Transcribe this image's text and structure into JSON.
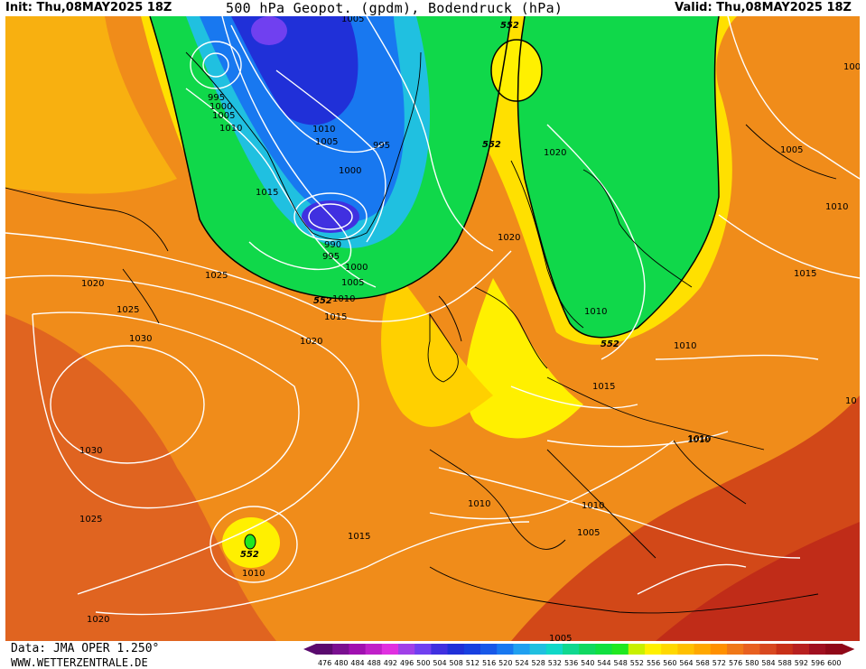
{
  "header": {
    "init": "Init: Thu,08MAY2025 18Z",
    "title": "500 hPa Geopot. (gpdm), Bodendruck (hPa)",
    "valid": "Valid: Thu,08MAY2025 18Z"
  },
  "footer": {
    "source": "Data: JMA OPER 1.250°",
    "site": "WWW.WETTERZENTRALE.DE"
  },
  "colorbar": {
    "ticks": [
      "476",
      "480",
      "484",
      "488",
      "492",
      "496",
      "500",
      "504",
      "508",
      "512",
      "516",
      "520",
      "524",
      "528",
      "532",
      "536",
      "540",
      "544",
      "548",
      "552",
      "556",
      "560",
      "564",
      "568",
      "572",
      "576",
      "580",
      "584",
      "588",
      "592",
      "596",
      "600"
    ],
    "colors": [
      "#5a0a6e",
      "#7a1090",
      "#a010b0",
      "#c020c8",
      "#e030e0",
      "#a040e8",
      "#7040f0",
      "#4030e0",
      "#2030d8",
      "#1840e0",
      "#1858e8",
      "#1878f0",
      "#20a0f0",
      "#20c0e0",
      "#10d8c8",
      "#10d890",
      "#10d860",
      "#10e040",
      "#20e820",
      "#c8f000",
      "#fff000",
      "#ffd800",
      "#ffc000",
      "#ffa800",
      "#ff9000",
      "#f07818",
      "#e86020",
      "#d84820",
      "#c83018",
      "#b82020",
      "#a01020",
      "#900818"
    ]
  },
  "map": {
    "highs_552": [
      "552",
      "552",
      "552",
      "552",
      "552"
    ],
    "isobar_labels": [
      "1005",
      "995",
      "1000",
      "1005",
      "1010",
      "1010",
      "1005",
      "995",
      "1000",
      "1015",
      "990",
      "995",
      "1000",
      "1005",
      "1025",
      "1020",
      "1025",
      "1030",
      "1030",
      "1025",
      "1020",
      "1010",
      "1015",
      "1020",
      "1010",
      "1015",
      "1020",
      "1020",
      "1005",
      "1010",
      "1015",
      "1010",
      "1010",
      "1015",
      "1010",
      "1010",
      "1010",
      "1005",
      "1010",
      "1005",
      "100",
      "10"
    ]
  }
}
